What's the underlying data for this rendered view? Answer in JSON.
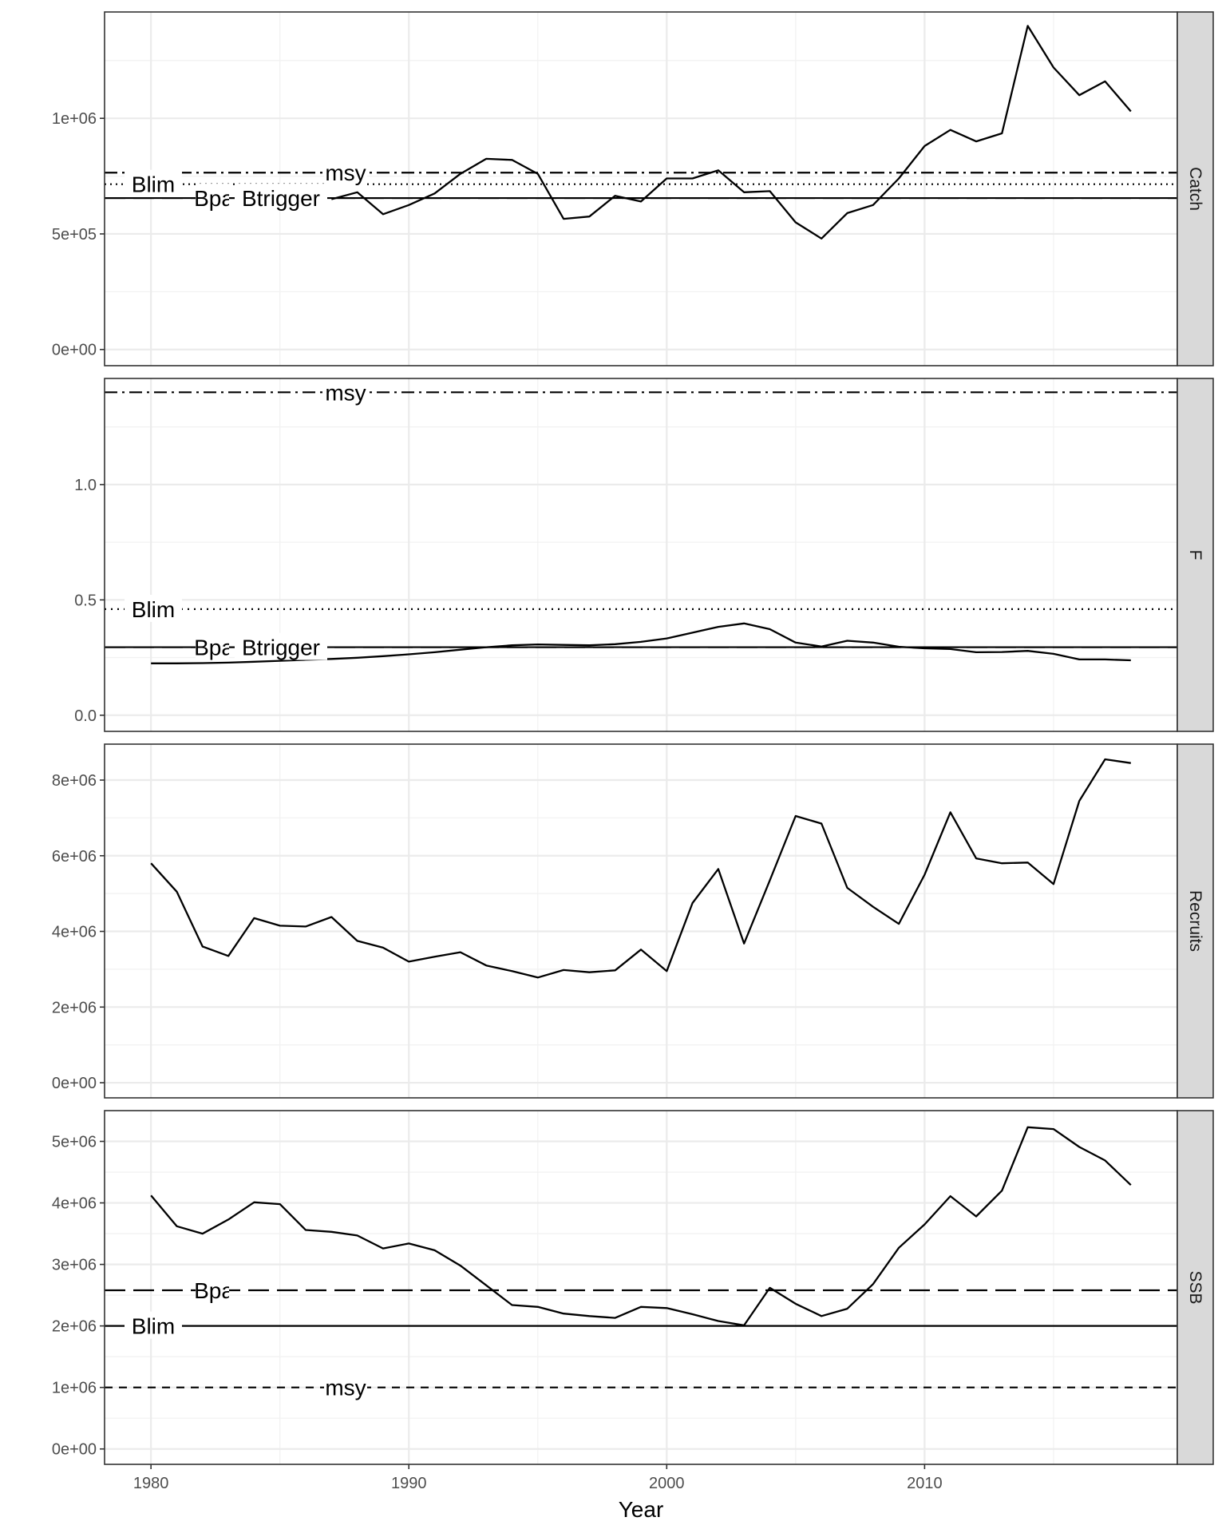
{
  "chart_data": {
    "type": "line",
    "xlabel": "Year",
    "x_ticks": [
      1980,
      1990,
      2000,
      2010
    ],
    "xlim": [
      1978.2,
      2019.8
    ],
    "years": [
      1980,
      1981,
      1982,
      1983,
      1984,
      1985,
      1986,
      1987,
      1988,
      1989,
      1990,
      1991,
      1992,
      1993,
      1994,
      1995,
      1996,
      1997,
      1998,
      1999,
      2000,
      2001,
      2002,
      2003,
      2004,
      2005,
      2006,
      2007,
      2008,
      2009,
      2010,
      2011,
      2012,
      2013,
      2014,
      2015,
      2016,
      2017,
      2018
    ],
    "reference_names": {
      "msy": "msy",
      "blim": "Blim",
      "bpa": "Bpa",
      "btrigger": "Btrigger"
    },
    "panels": [
      {
        "strip": "Catch",
        "ylim": [
          -70000,
          1460000
        ],
        "y_ticks": [
          0,
          500000,
          1000000
        ],
        "y_tick_labels": [
          "0e+00",
          "5e+05",
          "1e+06"
        ],
        "values": [
          null,
          null,
          null,
          null,
          null,
          null,
          null,
          650000,
          680000,
          585000,
          625000,
          675000,
          760000,
          825000,
          820000,
          760000,
          565000,
          575000,
          665000,
          640000,
          740000,
          740000,
          775000,
          680000,
          685000,
          550000,
          480000,
          590000,
          625000,
          740000,
          880000,
          950000,
          900000,
          935000,
          1400000,
          1220000,
          1100000,
          1160000,
          1030000
        ],
        "hidden_segment": [
          1980,
          1987
        ],
        "ref_lines": [
          {
            "key": "msy",
            "value": 765000,
            "dash": "dotdash"
          },
          {
            "key": "blim",
            "value": 715000,
            "dash": "dotted2"
          },
          {
            "key": "bpa",
            "value": 655000,
            "dash": "longdash"
          },
          {
            "key": "btrigger",
            "value": 655000,
            "dash": "solid"
          }
        ]
      },
      {
        "strip": "F",
        "ylim": [
          -0.07,
          1.46
        ],
        "y_ticks": [
          0.0,
          0.5,
          1.0
        ],
        "y_tick_labels": [
          "0.0",
          "0.5",
          "1.0"
        ],
        "values": [
          0.225,
          0.225,
          0.226,
          0.228,
          0.232,
          0.236,
          0.24,
          0.244,
          0.249,
          0.256,
          0.264,
          0.273,
          0.284,
          0.295,
          0.303,
          0.307,
          0.305,
          0.303,
          0.308,
          0.318,
          0.333,
          0.358,
          0.383,
          0.398,
          0.373,
          0.315,
          0.298,
          0.323,
          0.315,
          0.297,
          0.29,
          0.287,
          0.273,
          0.274,
          0.279,
          0.266,
          0.242,
          0.242,
          0.238
        ],
        "hidden_segment": [
          1982,
          1987
        ],
        "ref_lines": [
          {
            "key": "msy",
            "value": 1.4,
            "dash": "dotdash"
          },
          {
            "key": "blim",
            "value": 0.46,
            "dash": "dotted"
          },
          {
            "key": "bpa",
            "value": 0.295,
            "dash": "longdash"
          },
          {
            "key": "btrigger",
            "value": 0.295,
            "dash": "solid"
          }
        ]
      },
      {
        "strip": "Recruits",
        "ylim": [
          -400000,
          8950000
        ],
        "y_ticks": [
          0,
          2000000,
          4000000,
          6000000,
          8000000
        ],
        "y_tick_labels": [
          "0e+00",
          "2e+06",
          "4e+06",
          "6e+06",
          "8e+06"
        ],
        "values": [
          5800000,
          5050000,
          3600000,
          3350000,
          4350000,
          4150000,
          4130000,
          4380000,
          3750000,
          3570000,
          3200000,
          3330000,
          3450000,
          3100000,
          2950000,
          2780000,
          2980000,
          2920000,
          2970000,
          3520000,
          2950000,
          4750000,
          5650000,
          3680000,
          5350000,
          7050000,
          6850000,
          5150000,
          4650000,
          4200000,
          5500000,
          7150000,
          5930000,
          5800000,
          5820000,
          5250000,
          7450000,
          8550000,
          8450000
        ],
        "hidden_segment": null,
        "ref_lines": []
      },
      {
        "strip": "SSB",
        "ylim": [
          -250000,
          5500000
        ],
        "y_ticks": [
          0,
          1000000,
          2000000,
          3000000,
          4000000,
          5000000
        ],
        "y_tick_labels": [
          "0e+00",
          "1e+06",
          "2e+06",
          "3e+06",
          "4e+06",
          "5e+06"
        ],
        "values": [
          4120000,
          3620000,
          3500000,
          3730000,
          4010000,
          3980000,
          3560000,
          3530000,
          3470000,
          3260000,
          3340000,
          3230000,
          2980000,
          2660000,
          2340000,
          2310000,
          2200000,
          2160000,
          2130000,
          2310000,
          2290000,
          2190000,
          2080000,
          2010000,
          2620000,
          2360000,
          2160000,
          2280000,
          2680000,
          3270000,
          3650000,
          4110000,
          3780000,
          4200000,
          5230000,
          5200000,
          4910000,
          4690000,
          4290000
        ],
        "hidden_segment": null,
        "ref_lines": [
          {
            "key": "bpa",
            "value": 2580000,
            "dash": "longdash"
          },
          {
            "key": "blim",
            "value": 2000000,
            "dash": "solid"
          },
          {
            "key": "msy",
            "value": 1000000,
            "dash": "dashed"
          }
        ]
      }
    ]
  }
}
